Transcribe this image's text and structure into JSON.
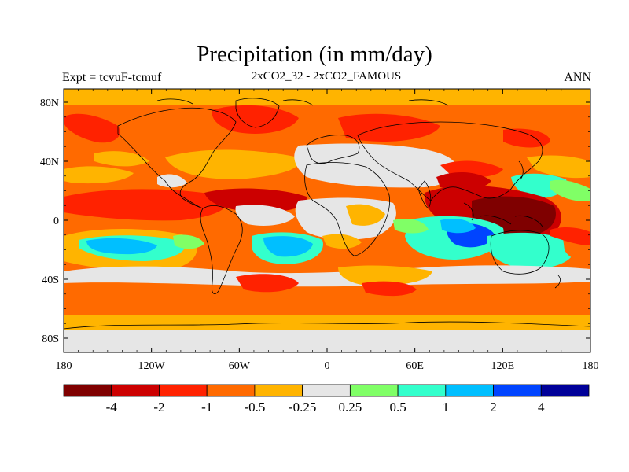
{
  "title": "Precipitation (in mm/day)",
  "left_label": "Expt = tcvuF-tcmuf",
  "center_label": "2xCO2_32 - 2xCO2_FAMOUS",
  "right_label": "ANN",
  "lat_ticks": [
    "80N",
    "40N",
    "0",
    "40S",
    "80S"
  ],
  "lon_ticks": [
    "180",
    "120W",
    "60W",
    "0",
    "60E",
    "120E",
    "180"
  ],
  "legend": {
    "colors": [
      "#7f0000",
      "#cc0000",
      "#ff2200",
      "#ff6a00",
      "#ffb400",
      "#e6e6e6",
      "#80ff66",
      "#33ffcc",
      "#00bfff",
      "#0044ff",
      "#000099"
    ],
    "labels": [
      "-4",
      "-2",
      "-1",
      "-0.5",
      "-0.25",
      "0.25",
      "0.5",
      "1",
      "2",
      "4"
    ]
  }
}
